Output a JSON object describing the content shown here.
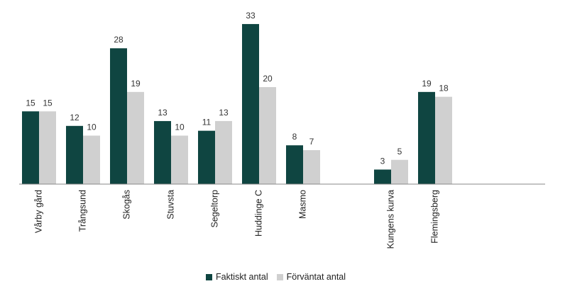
{
  "chart_data": {
    "type": "bar",
    "categories": [
      "Vårby gård",
      "Trångsund",
      "Skogås",
      "Stuvsta",
      "Segeltorp",
      "Huddinge C",
      "Masmo",
      "",
      "Kungens kurva",
      "Flemingsberg",
      ""
    ],
    "series": [
      {
        "name": "Faktiskt antal",
        "values": [
          15,
          12,
          28,
          13,
          11,
          33,
          8,
          null,
          3,
          19,
          null
        ],
        "color": "#0f4541"
      },
      {
        "name": "Förväntat antal",
        "values": [
          15,
          10,
          19,
          10,
          13,
          20,
          7,
          null,
          5,
          18,
          null
        ],
        "color": "#d0d0d0"
      }
    ],
    "ylim": [
      0,
      35
    ],
    "grid": false,
    "legend_position": "bottom"
  }
}
